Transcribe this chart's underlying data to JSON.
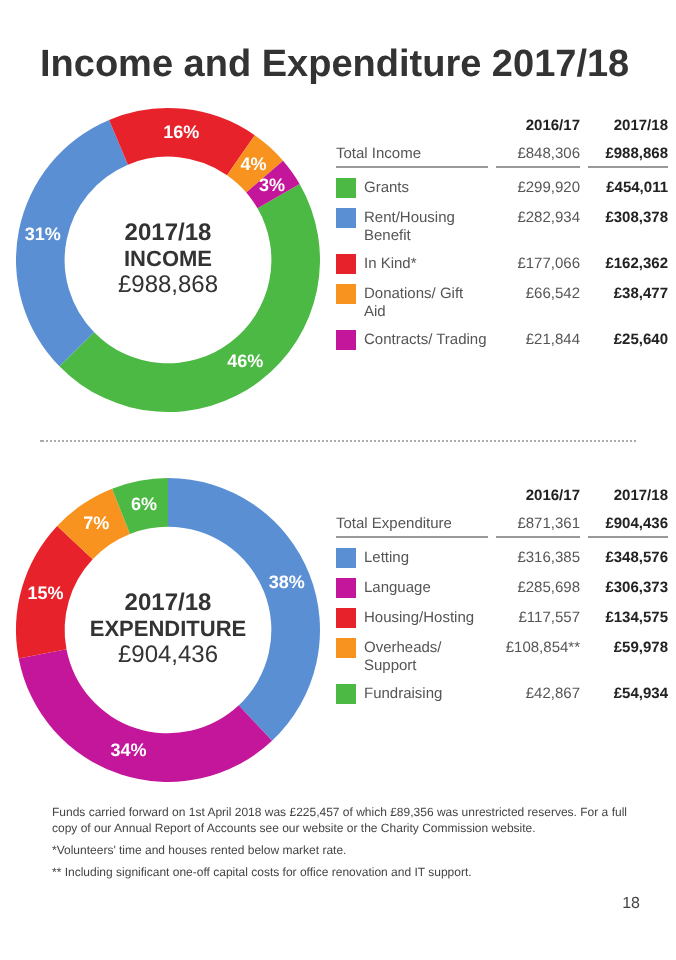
{
  "chart_data": [
    {
      "type": "donut",
      "title": "Income and Expenditure 2017/18",
      "categories": [
        "Grants",
        "Rent/Housing Benefit",
        "In Kind*",
        "Donations/ Gift Aid",
        "Contracts/ Trading"
      ],
      "values": [
        46,
        31,
        16,
        4,
        3
      ],
      "value_labels": [
        "46%",
        "31%",
        "16%",
        "4%",
        "3%"
      ],
      "colors": [
        "#4cb944",
        "#5b8fd4",
        "#e8222b",
        "#f7931e",
        "#c4169a"
      ],
      "legend": "right",
      "annotations": [
        "2017/18",
        "INCOME",
        "£988,868",
        "2016/17",
        "2017/18",
        "Total Income",
        "£848,306",
        "£988,868",
        "£299,920",
        "£454,011",
        "£282,934",
        "£308,378",
        "£177,066",
        "£162,362",
        "£66,542",
        "£38,477",
        "£21,844",
        "£25,640"
      ]
    },
    {
      "type": "donut",
      "categories": [
        "Letting",
        "Language",
        "Housing/Hosting",
        "Overheads/ Support",
        "Fundraising"
      ],
      "values": [
        38,
        34,
        15,
        7,
        6
      ],
      "value_labels": [
        "38%",
        "34%",
        "15%",
        "7%",
        "6%"
      ],
      "colors": [
        "#5b8fd4",
        "#c4169a",
        "#e8222b",
        "#f7931e",
        "#4cb944"
      ],
      "legend": "right",
      "annotations": [
        "2017/18",
        "EXPENDITURE",
        "£904,436",
        "2016/17",
        "2017/18",
        "Total Expenditure",
        "£871,361",
        "£904,436",
        "£316,385",
        "£348,576",
        "£285,698",
        "£306,373",
        "£117,557",
        "£134,575",
        "£108,854**",
        "£59,978",
        "£42,867",
        "£54,934",
        "Funds carried forward on 1st April 2018 was £225,457 of which £89,356 was unrestricted reserves. For a full copy of our Annual Report of Accounts see our website or the Charity Commission website.",
        "*Volunteers' time and houses rented below market rate.",
        "** Including significant one-off capital costs for office renovation and IT support.",
        "18"
      ]
    }
  ]
}
